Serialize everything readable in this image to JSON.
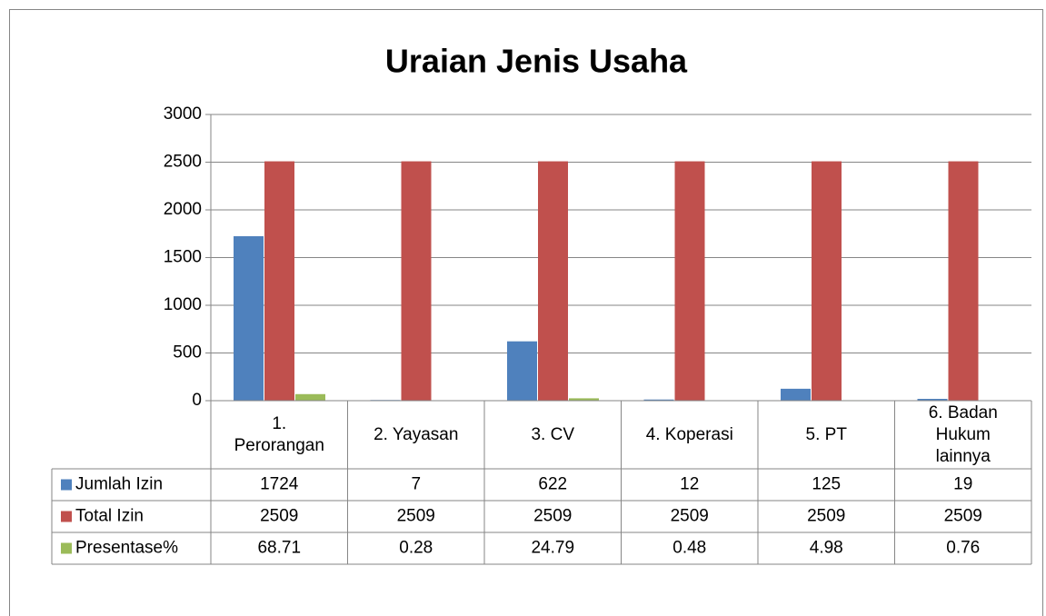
{
  "chart_data": {
    "type": "bar",
    "title": "Uraian Jenis Usaha",
    "categories": [
      "1. Perorangan",
      "2. Yayasan",
      "3. CV",
      "4. Koperasi",
      "5. PT",
      "6. Badan Hukum lainnya"
    ],
    "series": [
      {
        "name": "Jumlah Izin",
        "color": "#4f81bd",
        "values": [
          1724,
          7,
          622,
          12,
          125,
          19
        ]
      },
      {
        "name": "Total Izin",
        "color": "#c0504d",
        "values": [
          2509,
          2509,
          2509,
          2509,
          2509,
          2509
        ]
      },
      {
        "name": "Presentase%",
        "color": "#9bbb59",
        "values": [
          68.71,
          0.28,
          24.79,
          0.48,
          4.98,
          0.76
        ]
      }
    ],
    "ylim": [
      0,
      3000
    ],
    "yticks": [
      0,
      500,
      1000,
      1500,
      2000,
      2500,
      3000
    ],
    "grid": true,
    "data_table": true
  }
}
